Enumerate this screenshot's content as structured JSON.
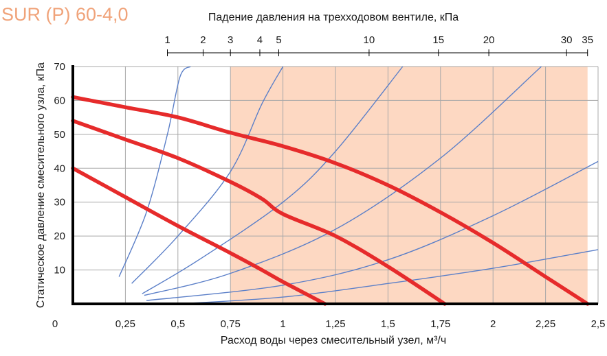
{
  "colors": {
    "shaded_region": "#fdd8c2",
    "pump_curve": "#e62b2b",
    "valve_curve": "#5b7fc8",
    "grid": "#a8a8a8",
    "axis": "#000000",
    "title": "#f0a37a"
  },
  "chart_data": {
    "type": "line",
    "title": "SUR (P) 60-4,0",
    "xlabel": "Расход воды через смесительный узел, м³/ч",
    "ylabel": "Статическое давление смесительного узла, кПа",
    "top_axis_label": "Падение давления на трехходовом вентиле, кПа",
    "xlim": [
      0,
      2.5
    ],
    "ylim": [
      0,
      70
    ],
    "grid": true,
    "x_ticks": [
      0,
      0.25,
      0.5,
      0.75,
      1,
      1.25,
      1.5,
      1.75,
      2,
      2.25,
      2.5
    ],
    "x_tick_labels": [
      "0",
      "0,25",
      "0,5",
      "0,75",
      "1",
      "1,25",
      "1,5",
      "1,75",
      "2",
      "2,25",
      "2,5"
    ],
    "y_ticks": [
      10,
      20,
      30,
      40,
      50,
      60,
      70
    ],
    "y_tick_labels": [
      "10",
      "20",
      "30",
      "40",
      "50",
      "60",
      "70"
    ],
    "top_ticks": [
      {
        "label": "1",
        "x": 0.45
      },
      {
        "label": "2",
        "x": 0.62
      },
      {
        "label": "3",
        "x": 0.75
      },
      {
        "label": "4",
        "x": 0.89
      },
      {
        "label": "5",
        "x": 0.98
      },
      {
        "label": "10",
        "x": 1.41
      },
      {
        "label": "15",
        "x": 1.74
      },
      {
        "label": "20",
        "x": 1.98
      },
      {
        "label": "30",
        "x": 2.35
      },
      {
        "label": "35",
        "x": 2.45
      }
    ],
    "shaded_range": [
      0.75,
      2.45
    ],
    "pump_curves": [
      {
        "x": [
          0,
          0.25,
          0.5,
          0.75,
          0.9,
          1.0,
          1.2
        ],
        "y": [
          40,
          31.5,
          23,
          15,
          10,
          6.5,
          0
        ]
      },
      {
        "x": [
          0,
          0.25,
          0.5,
          0.75,
          0.9,
          1.0,
          1.25,
          1.5,
          1.77
        ],
        "y": [
          54,
          48.5,
          43,
          36,
          31,
          26.5,
          20,
          11,
          0
        ]
      },
      {
        "x": [
          0,
          0.25,
          0.5,
          0.75,
          1.0,
          1.25,
          1.5,
          1.75,
          2.0,
          2.25,
          2.45
        ],
        "y": [
          61,
          58,
          55,
          50.5,
          46.5,
          41.5,
          35,
          27,
          18,
          8,
          0
        ]
      }
    ],
    "valve_curves": [
      {
        "x": [
          0.22,
          0.35,
          0.45,
          0.51,
          0.56
        ],
        "y": [
          8,
          27,
          50,
          67,
          70
        ]
      },
      {
        "x": [
          0.28,
          0.5,
          0.75,
          0.9,
          1.0
        ],
        "y": [
          6,
          20,
          39,
          59,
          70
        ]
      },
      {
        "x": [
          0.33,
          0.6,
          1.0,
          1.25,
          1.57
        ],
        "y": [
          3,
          13,
          30,
          45,
          70
        ]
      },
      {
        "x": [
          0.34,
          0.75,
          1.25,
          1.75,
          2.23
        ],
        "y": [
          2.5,
          9,
          22,
          43,
          70
        ]
      },
      {
        "x": [
          0.35,
          1.0,
          1.5,
          2.0,
          2.5
        ],
        "y": [
          1,
          5.5,
          13,
          26,
          42
        ]
      },
      {
        "x": [
          0.5,
          1.0,
          1.5,
          2.0,
          2.5
        ],
        "y": [
          0,
          2,
          6,
          10.5,
          16
        ]
      }
    ]
  }
}
